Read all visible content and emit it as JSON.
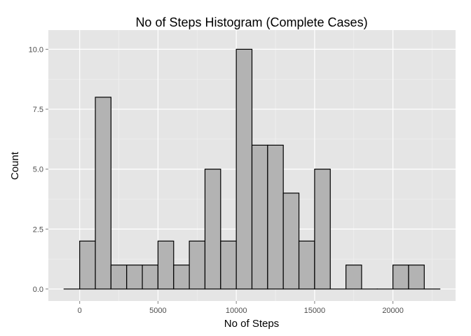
{
  "chart_data": {
    "type": "bar",
    "title": "No of Steps Histogram (Complete Cases)",
    "xlabel": "No of Steps",
    "ylabel": "Count",
    "bin_width": 1000,
    "bins": [
      {
        "x0": -1000,
        "x1": 0,
        "count": 0
      },
      {
        "x0": 0,
        "x1": 1000,
        "count": 2
      },
      {
        "x0": 1000,
        "x1": 2000,
        "count": 8
      },
      {
        "x0": 2000,
        "x1": 3000,
        "count": 1
      },
      {
        "x0": 3000,
        "x1": 4000,
        "count": 1
      },
      {
        "x0": 4000,
        "x1": 5000,
        "count": 1
      },
      {
        "x0": 5000,
        "x1": 6000,
        "count": 2
      },
      {
        "x0": 6000,
        "x1": 7000,
        "count": 1
      },
      {
        "x0": 7000,
        "x1": 8000,
        "count": 2
      },
      {
        "x0": 8000,
        "x1": 9000,
        "count": 5
      },
      {
        "x0": 9000,
        "x1": 10000,
        "count": 2
      },
      {
        "x0": 10000,
        "x1": 11000,
        "count": 10
      },
      {
        "x0": 11000,
        "x1": 12000,
        "count": 6
      },
      {
        "x0": 12000,
        "x1": 13000,
        "count": 6
      },
      {
        "x0": 13000,
        "x1": 14000,
        "count": 4
      },
      {
        "x0": 14000,
        "x1": 15000,
        "count": 2
      },
      {
        "x0": 15000,
        "x1": 16000,
        "count": 5
      },
      {
        "x0": 16000,
        "x1": 17000,
        "count": 0
      },
      {
        "x0": 17000,
        "x1": 18000,
        "count": 1
      },
      {
        "x0": 18000,
        "x1": 19000,
        "count": 0
      },
      {
        "x0": 19000,
        "x1": 20000,
        "count": 0
      },
      {
        "x0": 20000,
        "x1": 21000,
        "count": 1
      },
      {
        "x0": 21000,
        "x1": 22000,
        "count": 1
      },
      {
        "x0": 22000,
        "x1": 23000,
        "count": 0
      }
    ],
    "xlim": [
      -2000,
      24000
    ],
    "ylim": [
      -0.5,
      10.8
    ],
    "x_ticks": [
      0,
      5000,
      10000,
      15000,
      20000
    ],
    "x_tick_labels": [
      "0",
      "5000",
      "10000",
      "15000",
      "20000"
    ],
    "y_ticks": [
      0,
      2.5,
      5,
      7.5,
      10
    ],
    "y_tick_labels": [
      "0.0",
      "2.5",
      "5.0",
      "7.5",
      "10.0"
    ],
    "grid": true,
    "colors": {
      "panel_background": "#e5e5e5",
      "grid_major": "#ffffff",
      "grid_minor": "#f2f2f2",
      "bar_fill": "#b3b3b3",
      "bar_outline": "#000000"
    }
  }
}
